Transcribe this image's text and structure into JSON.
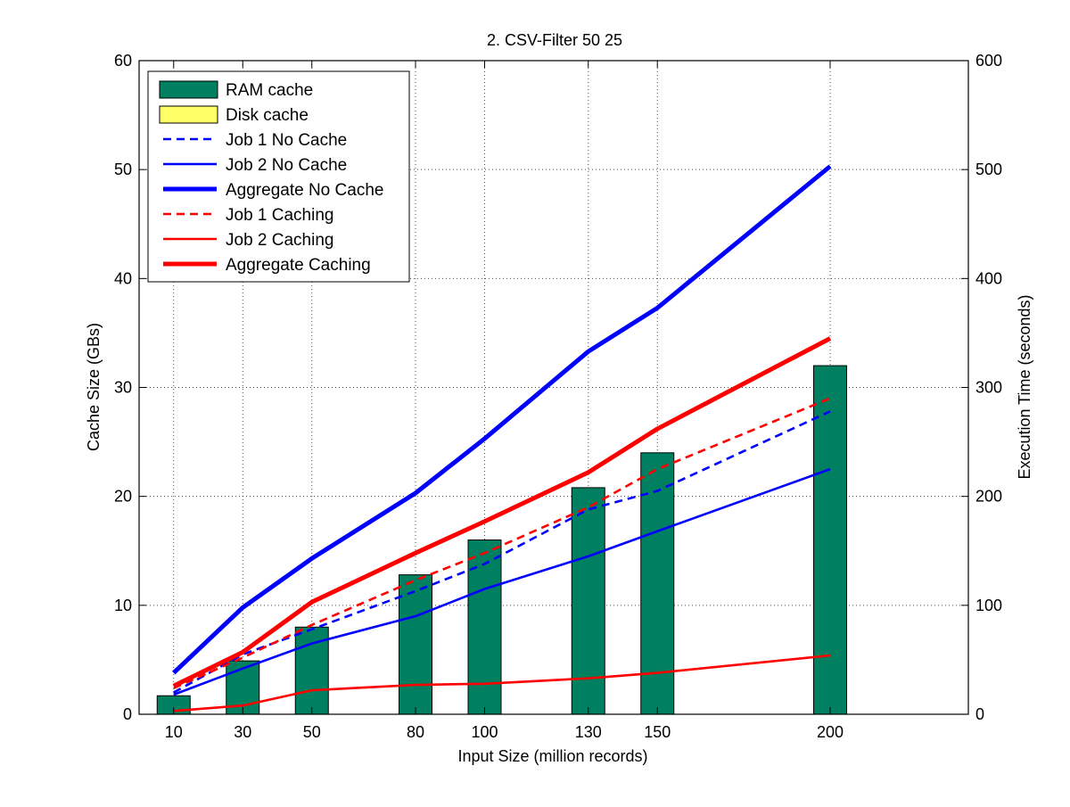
{
  "chart_data": {
    "type": "bar",
    "title": "2. CSV-Filter 50 25",
    "xlabel": "Input Size (million records)",
    "ylabel": "Cache Size (GBs)",
    "y2label": "Execution Time (seconds)",
    "x": [
      10,
      30,
      50,
      80,
      100,
      130,
      150,
      200
    ],
    "x_tick_labels": [
      "10",
      "30",
      "50",
      "80",
      "100",
      "130",
      "150",
      "200"
    ],
    "xlim": [
      0,
      240
    ],
    "ylim": [
      0,
      60
    ],
    "y2lim": [
      0,
      600
    ],
    "y_ticks": [
      0,
      10,
      20,
      30,
      40,
      50,
      60
    ],
    "y2_ticks": [
      0,
      100,
      200,
      300,
      400,
      500,
      600
    ],
    "grid": true,
    "legend_position": "top-left",
    "bar_series": [
      {
        "name": "RAM cache",
        "color": "#008060",
        "axis": "left",
        "values": [
          1.7,
          4.9,
          8.0,
          12.8,
          16.0,
          20.8,
          24.0,
          32.0
        ]
      },
      {
        "name": "Disk cache",
        "color": "#ffff66",
        "axis": "left",
        "values": [
          0,
          0,
          0,
          0,
          0,
          0,
          0,
          0
        ]
      }
    ],
    "line_series": [
      {
        "name": "Job 1 No Cache",
        "color": "#0000ff",
        "style": "dashed",
        "weight": "thin",
        "axis": "right",
        "values": [
          20,
          55,
          78,
          113,
          138,
          188,
          205,
          278
        ]
      },
      {
        "name": "Job 2 No Cache",
        "color": "#0000ff",
        "style": "solid",
        "weight": "thin",
        "axis": "right",
        "values": [
          18,
          42,
          65,
          90,
          115,
          145,
          168,
          225
        ]
      },
      {
        "name": "Aggregate No Cache",
        "color": "#0000ff",
        "style": "solid",
        "weight": "thick",
        "axis": "right",
        "values": [
          38,
          98,
          143,
          203,
          253,
          333,
          373,
          503
        ]
      },
      {
        "name": "Job 1 Caching",
        "color": "#ff0000",
        "style": "dashed",
        "weight": "thin",
        "axis": "right",
        "values": [
          24,
          52,
          82,
          123,
          148,
          190,
          225,
          290
        ]
      },
      {
        "name": "Job 2 Caching",
        "color": "#ff0000",
        "style": "solid",
        "weight": "thin",
        "axis": "right",
        "values": [
          3,
          8,
          22,
          27,
          28,
          33,
          38,
          54
        ]
      },
      {
        "name": "Aggregate Caching",
        "color": "#ff0000",
        "style": "solid",
        "weight": "thick",
        "axis": "right",
        "values": [
          26,
          57,
          103,
          148,
          177,
          222,
          262,
          345
        ]
      }
    ]
  }
}
